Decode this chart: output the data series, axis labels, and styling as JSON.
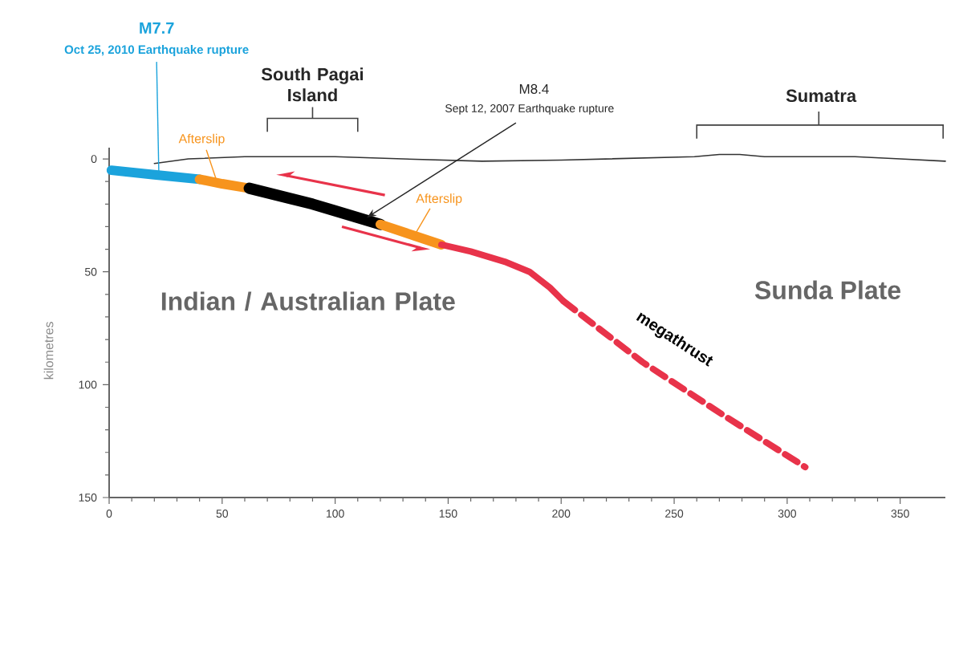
{
  "chart_data": {
    "type": "line",
    "ylabel": "kilometres",
    "xlim": [
      0,
      370
    ],
    "ylim": [
      150,
      -5
    ],
    "xticks": [
      0,
      50,
      100,
      150,
      200,
      250,
      300,
      350
    ],
    "yticks": [
      0,
      50,
      100,
      150
    ],
    "grid": false,
    "marker": "none",
    "series": [
      {
        "color": "#333333",
        "x": [
          20,
          35,
          60,
          100,
          130,
          165,
          200,
          259,
          270,
          279,
          290,
          310,
          330,
          350,
          370
        ],
        "values": [
          2,
          0,
          -1,
          -1,
          0,
          1,
          0.5,
          -1,
          -2,
          -2,
          -1,
          -1,
          -1,
          0,
          1
        ]
      },
      {
        "color": "#1ba3dc",
        "x": [
          1,
          20,
          40
        ],
        "values": [
          5,
          7,
          9
        ]
      },
      {
        "color": "#f7941d",
        "x": [
          40,
          50,
          62
        ],
        "values": [
          9,
          11,
          13
        ]
      },
      {
        "color": "#000000",
        "x": [
          62,
          90,
          120
        ],
        "values": [
          13,
          20,
          29
        ]
      },
      {
        "color": "#f7941d",
        "x": [
          120,
          135,
          147
        ],
        "values": [
          29,
          34,
          38
        ]
      },
      {
        "color": "#e8334a",
        "x": [
          147,
          160,
          175,
          186,
          195,
          201
        ],
        "values": [
          38,
          41,
          45.5,
          50,
          57,
          63
        ]
      },
      {
        "color": "#e8334a",
        "line_style": "dashed",
        "x": [
          201,
          236,
          271,
          308
        ],
        "values": [
          63,
          90,
          113,
          136.5
        ]
      }
    ],
    "annotations": [
      "M7.7",
      {
        "text": "Oct 25, 2010 Earthquake rupture",
        "x": 22,
        "y": 7
      },
      "South Pagai Island",
      "M8.4",
      {
        "text": "Sept 12, 2007 Earthquake rupture",
        "x": 114,
        "y": 26
      },
      "Sumatra",
      {
        "text": "Afterslip",
        "x": 48,
        "y": 11
      },
      {
        "text": "Afterslip",
        "x": 135,
        "y": 34
      },
      "Indian / Australian Plate",
      "Sunda Plate",
      "megathrust"
    ]
  }
}
